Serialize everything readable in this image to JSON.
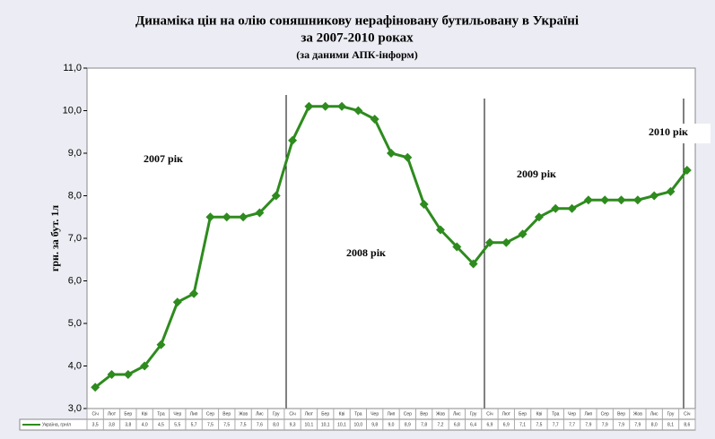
{
  "chart_data": {
    "type": "line",
    "title": "Динаміка цін на олію соняшникову нерафіновану бутильовану в Україні",
    "subtitle": "за 2007-2010 роках",
    "source": "(за даними АПК-інформ)",
    "y_label": "грн. за бут. 1л",
    "annotations": [
      "2007 рік",
      "2008 рік",
      "2009 рік",
      "2010 рік"
    ],
    "categories": [
      "Січ",
      "Лют",
      "Бер",
      "Кві",
      "Тра",
      "Чер",
      "Лип",
      "Сер",
      "Вер",
      "Жов",
      "Лис",
      "Гру",
      "Січ",
      "Лют",
      "Бер",
      "Кві",
      "Тра",
      "Чер",
      "Лип",
      "Сер",
      "Вер",
      "Жов",
      "Лис",
      "Гру",
      "Січ",
      "Лют",
      "Бер",
      "Кві",
      "Тра",
      "Чер",
      "Лип",
      "Сер",
      "Вер",
      "Жов",
      "Лис",
      "Гру",
      "Січ"
    ],
    "series": [
      {
        "name": "Україна, грн/л",
        "color": "#2e8b1e",
        "values": [
          3.5,
          3.8,
          3.8,
          4.0,
          4.5,
          5.5,
          5.7,
          7.5,
          7.5,
          7.5,
          7.6,
          8.0,
          9.3,
          10.1,
          10.1,
          10.1,
          10.0,
          9.8,
          9.0,
          8.9,
          7.8,
          7.2,
          6.8,
          6.4,
          6.9,
          6.9,
          7.1,
          7.5,
          7.7,
          7.7,
          7.9,
          7.9,
          7.9,
          7.9,
          8.0,
          8.1,
          8.6
        ],
        "value_labels": [
          "3,5",
          "3,8",
          "3,8",
          "4,0",
          "4,5",
          "5,5",
          "5,7",
          "7,5",
          "7,5",
          "7,5",
          "7,6",
          "8,0",
          "9,3",
          "10,1",
          "10,1",
          "10,1",
          "10,0",
          "9,8",
          "9,0",
          "8,9",
          "7,8",
          "7,2",
          "6,8",
          "6,4",
          "6,9",
          "6,9",
          "7,1",
          "7,5",
          "7,7",
          "7,7",
          "7,9",
          "7,9",
          "7,9",
          "7,9",
          "8,0",
          "8,1",
          "8,6"
        ]
      }
    ],
    "ylim": [
      3,
      11
    ],
    "yticks": [
      {
        "value": 3,
        "label": "3,0"
      },
      {
        "value": 4,
        "label": "4,0"
      },
      {
        "value": 5,
        "label": "5,0"
      },
      {
        "value": 6,
        "label": "6,0"
      },
      {
        "value": 7,
        "label": "7,0"
      },
      {
        "value": 8,
        "label": "8,0"
      },
      {
        "value": 9,
        "label": "9,0"
      },
      {
        "value": 10,
        "label": "10,0"
      },
      {
        "value": 11,
        "label": "11,0"
      }
    ],
    "grid": false
  }
}
